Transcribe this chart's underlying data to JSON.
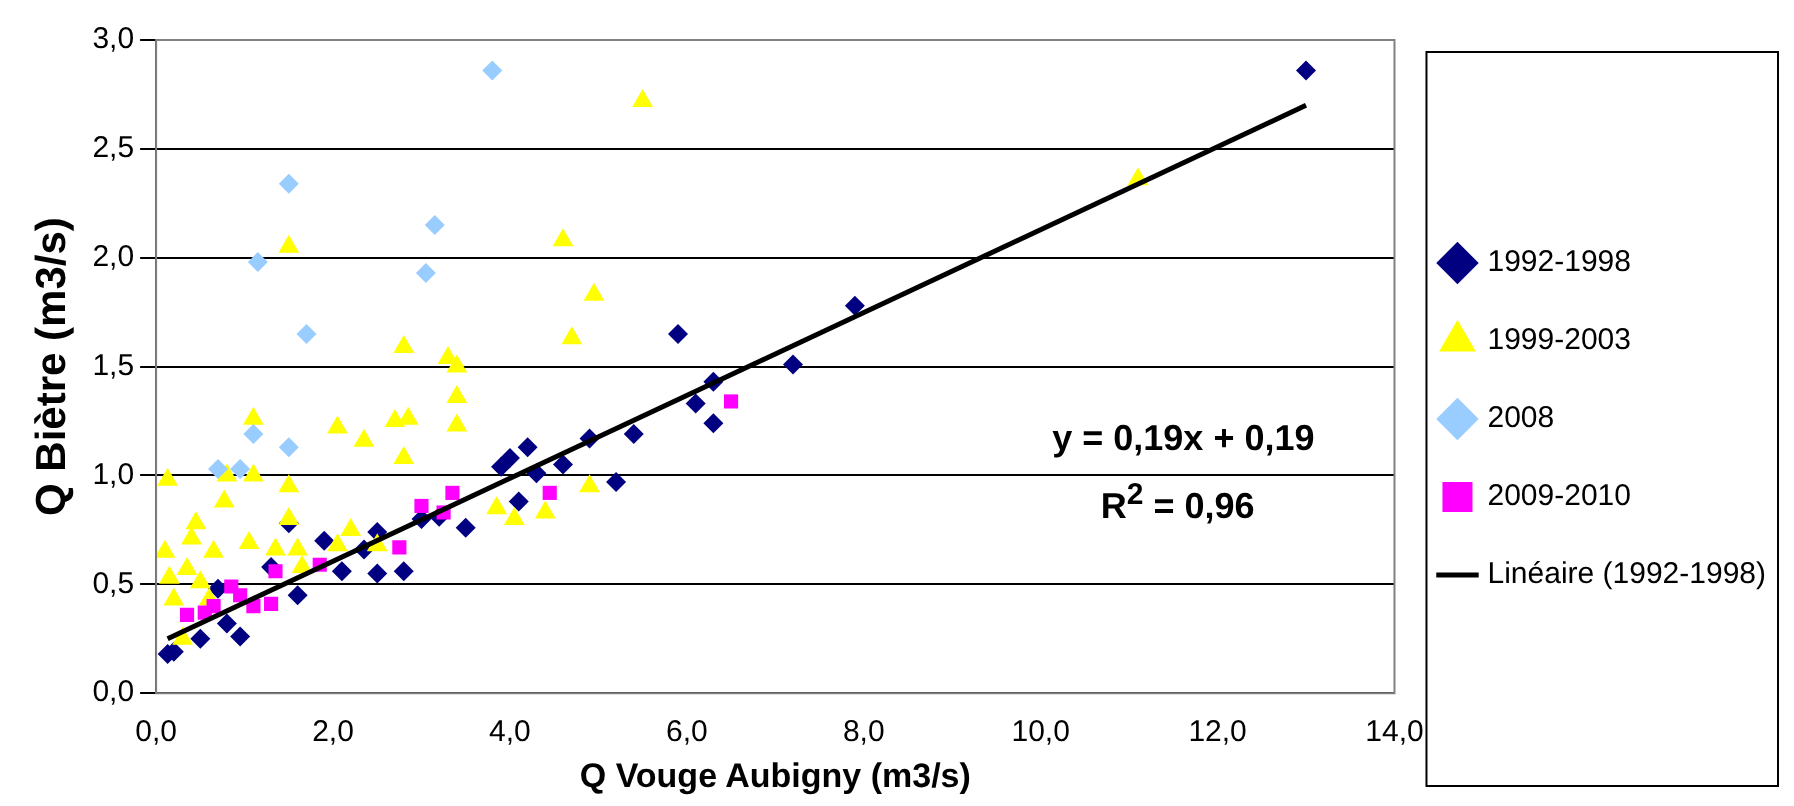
{
  "chart_data": {
    "type": "scatter",
    "xlabel": "Q Vouge Aubigny (m3/s)",
    "ylabel": "Q Biètre (m3/s)",
    "xlim": [
      0,
      14
    ],
    "xticks": [
      {
        "value": 0,
        "label": "0,0"
      },
      {
        "value": 2,
        "label": "2,0"
      },
      {
        "value": 4,
        "label": "4,0"
      },
      {
        "value": 6,
        "label": "6,0"
      },
      {
        "value": 8,
        "label": "8,0"
      },
      {
        "value": 10,
        "label": "10,0"
      },
      {
        "value": 12,
        "label": "12,0"
      },
      {
        "value": 14,
        "label": "14,0"
      }
    ],
    "ylim": [
      0,
      3
    ],
    "yticks": [
      {
        "value": 0,
        "label": "0,0"
      },
      {
        "value": 0.5,
        "label": "0,5"
      },
      {
        "value": 1,
        "label": "1,0"
      },
      {
        "value": 1.5,
        "label": "1,5"
      },
      {
        "value": 2,
        "label": "2,0"
      },
      {
        "value": 2.5,
        "label": "2,5"
      },
      {
        "value": 3,
        "label": "3,0"
      }
    ],
    "grid": "y",
    "legend": "right",
    "annotations": [
      "y = 0,19x + 0,19",
      "R$^{2}$ = 0,96"
    ],
    "series": [
      {
        "name": "1992-1998",
        "color": "#000080",
        "marker": "diamond",
        "x": [
          13.0,
          7.9,
          7.2,
          6.3,
          6.1,
          6.3,
          5.9,
          5.4,
          5.2,
          4.9,
          4.6,
          4.2,
          4.0,
          3.9,
          4.3,
          4.1,
          3.5,
          3.2,
          3.0,
          2.8,
          2.5,
          2.5,
          2.1,
          1.9,
          1.6,
          0.95,
          0.13,
          0.2,
          0.5,
          0.8,
          0.7,
          1.3,
          1.5,
          2.35
        ],
        "values": [
          2.86,
          1.78,
          1.51,
          1.43,
          1.33,
          1.24,
          1.65,
          1.19,
          0.97,
          1.17,
          1.05,
          1.13,
          1.08,
          1.04,
          1.01,
          0.88,
          0.76,
          0.81,
          0.8,
          0.56,
          0.55,
          0.74,
          0.56,
          0.7,
          0.45,
          0.26,
          0.18,
          0.19,
          0.25,
          0.32,
          0.48,
          0.58,
          0.78,
          0.66
        ]
      },
      {
        "name": "1999-2003",
        "color": "#ffff00",
        "marker": "triangle",
        "x": [
          5.5,
          4.6,
          4.95,
          4.7,
          2.8,
          3.3,
          3.4,
          1.5,
          11.1,
          3.4,
          3.4,
          2.85,
          2.7,
          2.35,
          2.05,
          2.8,
          1.1,
          1.1,
          0.8,
          0.13,
          1.5,
          0.77,
          1.5,
          0.45,
          0.4,
          0.1,
          0.65,
          1.05,
          1.35,
          1.6,
          2.05,
          2.2,
          2.5,
          0.35,
          0.15,
          0.5,
          3.85,
          4.05,
          4.4,
          4.9,
          0.3,
          0.2,
          0.6,
          1.65
        ],
        "values": [
          2.72,
          2.08,
          1.83,
          1.63,
          1.59,
          1.54,
          1.5,
          2.05,
          2.36,
          1.36,
          1.23,
          1.26,
          1.25,
          1.16,
          1.22,
          1.08,
          1.26,
          1.0,
          1.0,
          0.98,
          0.95,
          0.88,
          0.8,
          0.78,
          0.71,
          0.65,
          0.65,
          0.69,
          0.66,
          0.66,
          0.68,
          0.75,
          0.68,
          0.57,
          0.53,
          0.51,
          0.85,
          0.8,
          0.83,
          0.95,
          0.25,
          0.43,
          0.43,
          0.58
        ]
      },
      {
        "name": "2008",
        "color": "#99ccff",
        "marker": "diamond",
        "x": [
          3.8,
          1.5,
          3.15,
          1.15,
          3.05,
          1.7,
          1.1,
          1.5,
          0.7,
          0.95
        ],
        "values": [
          2.86,
          2.34,
          2.15,
          1.98,
          1.93,
          1.65,
          1.19,
          1.13,
          1.03,
          1.03
        ]
      },
      {
        "name": "2009-2010",
        "color": "#ff00ff",
        "marker": "square",
        "x": [
          6.5,
          4.45,
          3.35,
          3.0,
          3.25,
          2.75,
          1.85,
          1.35,
          0.85,
          0.95,
          1.3,
          1.1,
          0.65,
          0.35,
          0.55
        ],
        "values": [
          1.34,
          0.92,
          0.92,
          0.86,
          0.83,
          0.67,
          0.59,
          0.56,
          0.49,
          0.45,
          0.41,
          0.4,
          0.4,
          0.36,
          0.37
        ]
      },
      {
        "name": "Linéaire (1992-1998)",
        "type": "line",
        "color": "#000000",
        "marker": "none",
        "x": [
          0.13,
          13.0
        ],
        "values": [
          0.25,
          2.7
        ]
      }
    ]
  }
}
